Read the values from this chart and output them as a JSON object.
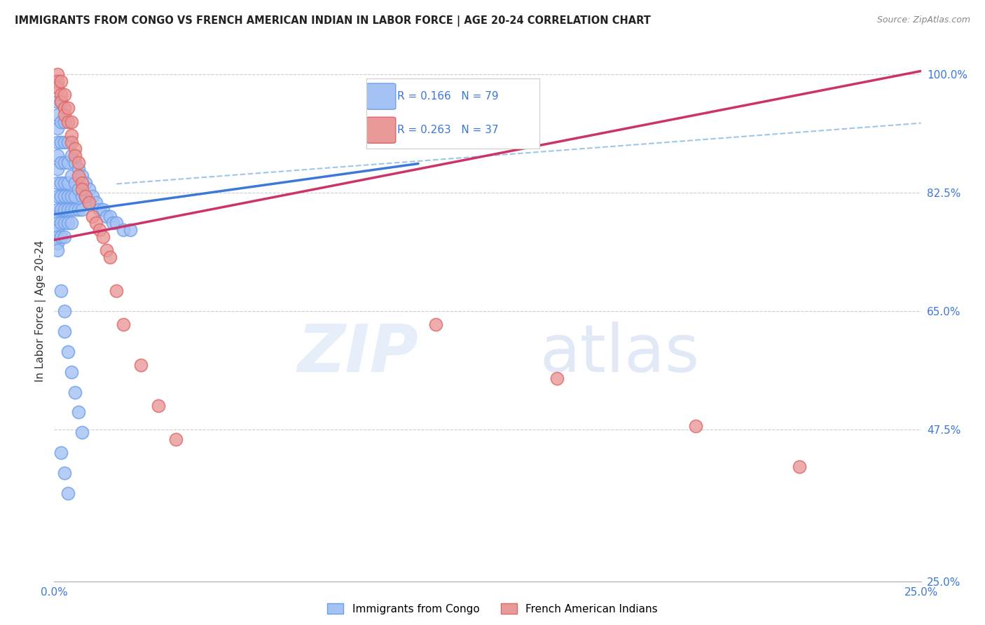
{
  "title": "IMMIGRANTS FROM CONGO VS FRENCH AMERICAN INDIAN IN LABOR FORCE | AGE 20-24 CORRELATION CHART",
  "source": "Source: ZipAtlas.com",
  "ylabel": "In Labor Force | Age 20-24",
  "xlim": [
    0.0,
    0.25
  ],
  "ylim": [
    0.25,
    1.05
  ],
  "xticks": [
    0.0,
    0.05,
    0.1,
    0.15,
    0.2,
    0.25
  ],
  "xticklabels": [
    "0.0%",
    "",
    "",
    "",
    "",
    "25.0%"
  ],
  "yticks_right": [
    0.25,
    0.475,
    0.65,
    0.825,
    1.0
  ],
  "yticklabels_right": [
    "25.0%",
    "47.5%",
    "65.0%",
    "82.5%",
    "100.0%"
  ],
  "blue_color": "#a4c2f4",
  "blue_edge": "#6d9eeb",
  "pink_color": "#ea9999",
  "pink_edge": "#e06666",
  "trend_blue": "#3c78d8",
  "trend_pink": "#cc3366",
  "trend_dashed_color": "#9fc5e8",
  "blue_R": 0.166,
  "blue_N": 79,
  "pink_R": 0.263,
  "pink_N": 37,
  "blue_trend_x": [
    0.0,
    0.105
  ],
  "blue_trend_y": [
    0.793,
    0.868
  ],
  "pink_trend_x": [
    0.0,
    0.25
  ],
  "pink_trend_y": [
    0.755,
    1.005
  ],
  "dashed_trend_x": [
    0.018,
    0.25
  ],
  "dashed_trend_y": [
    0.838,
    0.928
  ],
  "watermark_zip": "ZIP",
  "watermark_atlas": "atlas",
  "legend1_label": "Immigrants from Congo",
  "legend2_label": "French American Indians",
  "blue_x": [
    0.001,
    0.001,
    0.001,
    0.001,
    0.001,
    0.001,
    0.001,
    0.001,
    0.001,
    0.001,
    0.001,
    0.001,
    0.001,
    0.001,
    0.001,
    0.001,
    0.002,
    0.002,
    0.002,
    0.002,
    0.002,
    0.002,
    0.002,
    0.002,
    0.002,
    0.003,
    0.003,
    0.003,
    0.003,
    0.003,
    0.003,
    0.003,
    0.003,
    0.004,
    0.004,
    0.004,
    0.004,
    0.004,
    0.004,
    0.005,
    0.005,
    0.005,
    0.005,
    0.005,
    0.006,
    0.006,
    0.006,
    0.006,
    0.007,
    0.007,
    0.007,
    0.008,
    0.008,
    0.008,
    0.009,
    0.009,
    0.01,
    0.01,
    0.011,
    0.012,
    0.013,
    0.014,
    0.015,
    0.016,
    0.017,
    0.018,
    0.02,
    0.022,
    0.002,
    0.003,
    0.003,
    0.004,
    0.005,
    0.006,
    0.007,
    0.008,
    0.002,
    0.003,
    0.004
  ],
  "blue_y": [
    0.98,
    0.96,
    0.94,
    0.92,
    0.9,
    0.88,
    0.86,
    0.84,
    0.82,
    0.8,
    0.79,
    0.78,
    0.77,
    0.76,
    0.75,
    0.74,
    0.96,
    0.93,
    0.9,
    0.87,
    0.84,
    0.82,
    0.8,
    0.78,
    0.76,
    0.93,
    0.9,
    0.87,
    0.84,
    0.82,
    0.8,
    0.78,
    0.76,
    0.9,
    0.87,
    0.84,
    0.82,
    0.8,
    0.78,
    0.88,
    0.85,
    0.82,
    0.8,
    0.78,
    0.87,
    0.84,
    0.82,
    0.8,
    0.86,
    0.83,
    0.8,
    0.85,
    0.82,
    0.8,
    0.84,
    0.82,
    0.83,
    0.81,
    0.82,
    0.81,
    0.8,
    0.8,
    0.79,
    0.79,
    0.78,
    0.78,
    0.77,
    0.77,
    0.68,
    0.65,
    0.62,
    0.59,
    0.56,
    0.53,
    0.5,
    0.47,
    0.44,
    0.41,
    0.38
  ],
  "pink_x": [
    0.001,
    0.001,
    0.001,
    0.002,
    0.002,
    0.002,
    0.003,
    0.003,
    0.003,
    0.004,
    0.004,
    0.005,
    0.005,
    0.005,
    0.006,
    0.006,
    0.007,
    0.007,
    0.008,
    0.008,
    0.009,
    0.01,
    0.011,
    0.012,
    0.013,
    0.014,
    0.015,
    0.016,
    0.018,
    0.02,
    0.025,
    0.03,
    0.035,
    0.11,
    0.145,
    0.185,
    0.215
  ],
  "pink_y": [
    1.0,
    0.99,
    0.98,
    0.99,
    0.97,
    0.96,
    0.97,
    0.95,
    0.94,
    0.95,
    0.93,
    0.93,
    0.91,
    0.9,
    0.89,
    0.88,
    0.87,
    0.85,
    0.84,
    0.83,
    0.82,
    0.81,
    0.79,
    0.78,
    0.77,
    0.76,
    0.74,
    0.73,
    0.68,
    0.63,
    0.57,
    0.51,
    0.46,
    0.63,
    0.55,
    0.48,
    0.42
  ]
}
